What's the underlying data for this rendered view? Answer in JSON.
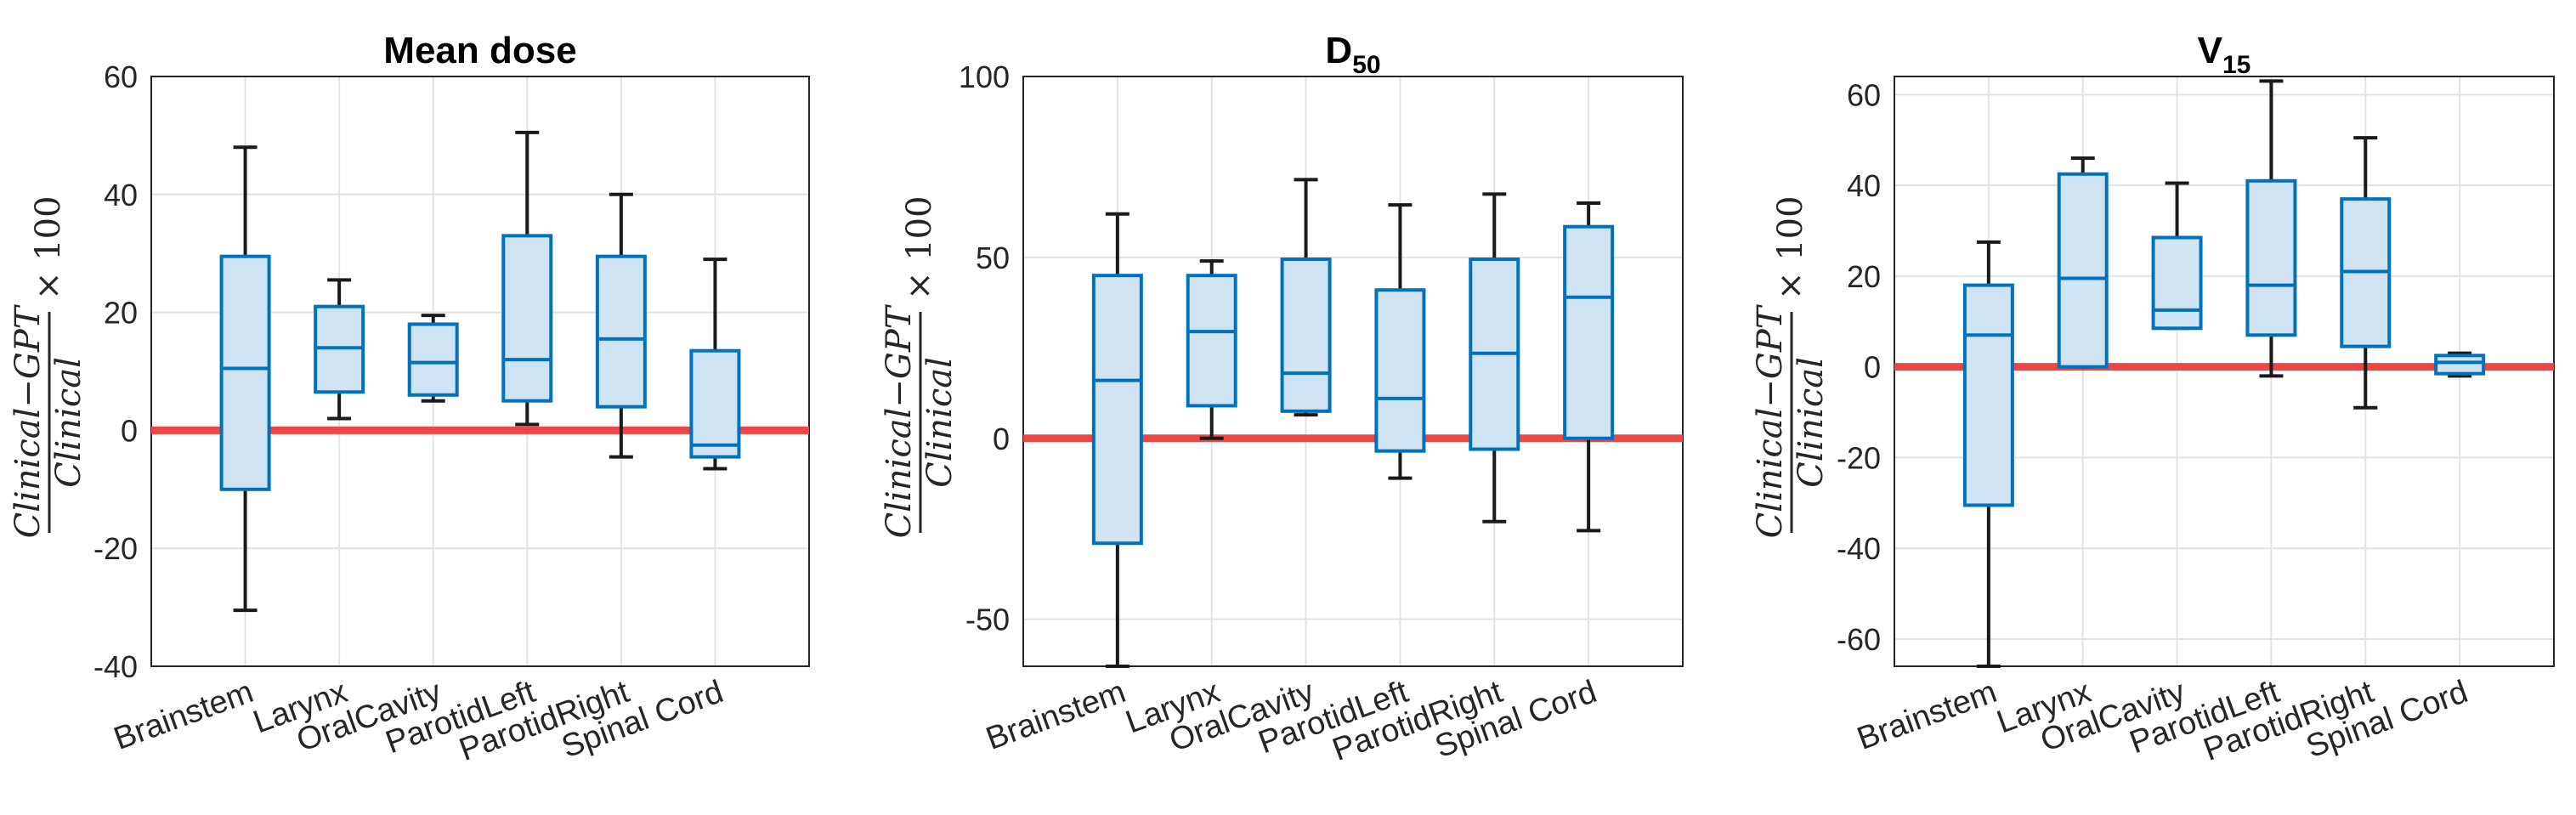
{
  "chart_data": [
    {
      "type": "box",
      "title": "Mean dose",
      "title_sub": "",
      "ylabel_numerator": "Clinical−GPT",
      "ylabel_denominator": "Clinical",
      "ylabel_suffix": "× 100",
      "categories": [
        "Brainstem",
        "Larynx",
        "OralCavity",
        "ParotidLeft",
        "ParotidRight",
        "Spinal Cord"
      ],
      "ylim": [
        -40,
        60
      ],
      "yticks": [
        -40,
        -20,
        0,
        20,
        40,
        60
      ],
      "reference_line": 0,
      "boxes": [
        {
          "min": -30.5,
          "q1": -10,
          "median": 10.5,
          "q3": 29.5,
          "max": 48
        },
        {
          "min": 2,
          "q1": 6.5,
          "median": 14,
          "q3": 21,
          "max": 25.5
        },
        {
          "min": 5,
          "q1": 6,
          "median": 11.5,
          "q3": 18,
          "max": 19.5
        },
        {
          "min": 1,
          "q1": 5,
          "median": 12,
          "q3": 33,
          "max": 50.5
        },
        {
          "min": -4.5,
          "q1": 4,
          "median": 15.5,
          "q3": 29.5,
          "max": 40
        },
        {
          "min": -6.5,
          "q1": -4.5,
          "median": -2.5,
          "q3": 13.5,
          "max": 29
        }
      ]
    },
    {
      "type": "box",
      "title": "D",
      "title_sub": "50",
      "ylabel_numerator": "Clinical−GPT",
      "ylabel_denominator": "Clinical",
      "ylabel_suffix": "× 100",
      "categories": [
        "Brainstem",
        "Larynx",
        "OralCavity",
        "ParotidLeft",
        "ParotidRight",
        "Spinal Cord"
      ],
      "ylim": [
        -63,
        100
      ],
      "yticks": [
        -50,
        0,
        50,
        100
      ],
      "reference_line": 0,
      "boxes": [
        {
          "min": -63,
          "q1": -29,
          "median": 16,
          "q3": 45,
          "max": 62
        },
        {
          "min": 0,
          "q1": 9,
          "median": 29.5,
          "q3": 45,
          "max": 49
        },
        {
          "min": 6.5,
          "q1": 7.5,
          "median": 18,
          "q3": 49.5,
          "max": 71.5
        },
        {
          "min": -11,
          "q1": -3.5,
          "median": 11,
          "q3": 41,
          "max": 64.5
        },
        {
          "min": -23,
          "q1": -3,
          "median": 23.5,
          "q3": 49.5,
          "max": 67.5
        },
        {
          "min": -25.5,
          "q1": 0,
          "median": 39,
          "q3": 58.5,
          "max": 65
        }
      ]
    },
    {
      "type": "box",
      "title": "V",
      "title_sub": "15",
      "ylabel_numerator": "Clinical−GPT",
      "ylabel_denominator": "Clinical",
      "ylabel_suffix": "× 100",
      "categories": [
        "Brainstem",
        "Larynx",
        "OralCavity",
        "ParotidLeft",
        "ParotidRight",
        "Spinal Cord"
      ],
      "ylim": [
        -66,
        64
      ],
      "yticks": [
        -60,
        -40,
        -20,
        0,
        20,
        40,
        60
      ],
      "reference_line": 0,
      "boxes": [
        {
          "min": -66,
          "q1": -30.5,
          "median": 7,
          "q3": 18,
          "max": 27.5
        },
        {
          "min": 0,
          "q1": 0,
          "median": 19.5,
          "q3": 42.5,
          "max": 46
        },
        {
          "min": 8.5,
          "q1": 8.5,
          "median": 12.5,
          "q3": 28.5,
          "max": 40.5
        },
        {
          "min": -2,
          "q1": 7,
          "median": 18,
          "q3": 41,
          "max": 63
        },
        {
          "min": -9,
          "q1": 4.5,
          "median": 21,
          "q3": 37,
          "max": 50.5
        },
        {
          "min": -2,
          "q1": -1.5,
          "median": 1,
          "q3": 2.5,
          "max": 3
        }
      ]
    }
  ]
}
